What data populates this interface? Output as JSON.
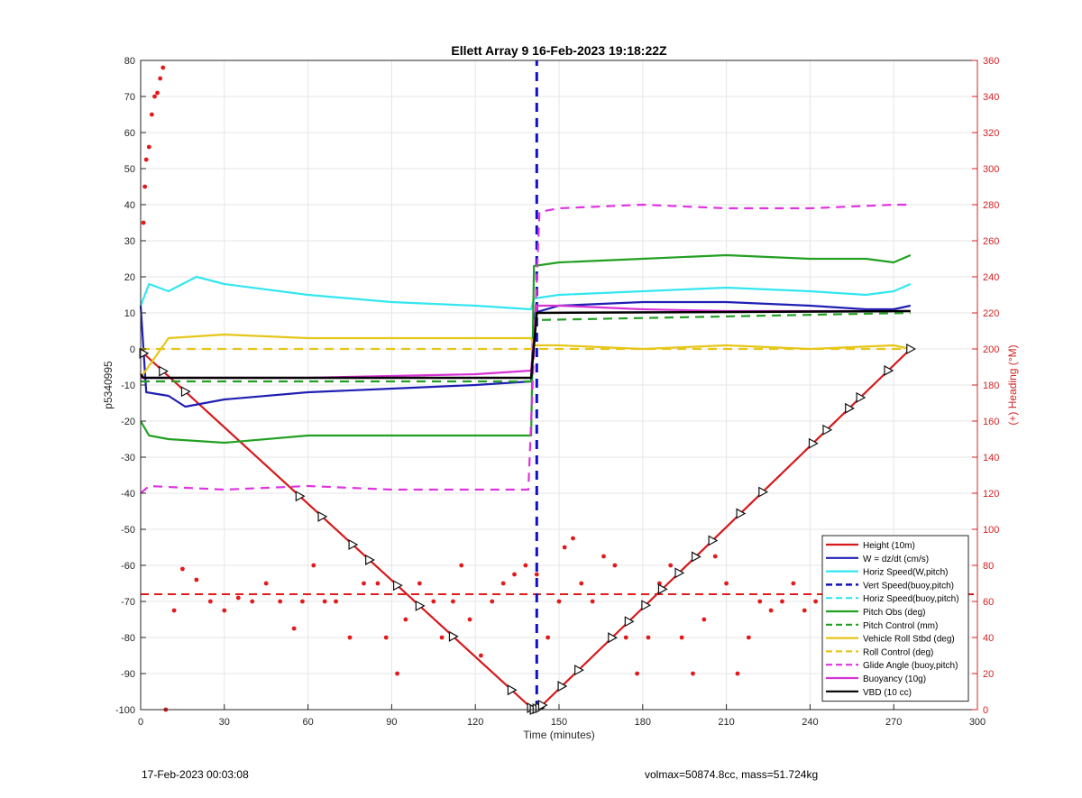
{
  "footer": {
    "left": "17-Feb-2023 00:03:08",
    "right": "volmax=50874.8cc, mass=51.724kg"
  },
  "chart_data": {
    "type": "line",
    "title": "Ellett Array 9 16-Feb-2023 19:18:22Z",
    "xlabel": "Time (minutes)",
    "ylabel": "p5340995",
    "y2label": "(+) Heading (°M)",
    "xlim": [
      0,
      300
    ],
    "ylim": [
      -100,
      80
    ],
    "y2lim": [
      0,
      360
    ],
    "xticks": [
      0,
      30,
      60,
      90,
      120,
      150,
      180,
      210,
      240,
      270,
      300
    ],
    "yticks": [
      -100,
      -90,
      -80,
      -70,
      -60,
      -50,
      -40,
      -30,
      -20,
      -10,
      0,
      10,
      20,
      30,
      40,
      50,
      60,
      70,
      80
    ],
    "y2ticks": [
      0,
      20,
      40,
      60,
      80,
      100,
      120,
      140,
      160,
      180,
      200,
      220,
      240,
      260,
      280,
      300,
      320,
      340,
      360
    ],
    "grid": true,
    "legend_position": "bottom-right",
    "colors": {
      "height": "#d7191c",
      "w": "#1f1fb4",
      "horiz": "#33e6f0",
      "vert": "#1010c8",
      "pitch": "#22a022",
      "roll": "#e6c619",
      "glide": "#e033e0",
      "buoy": "#d633d6",
      "vbd": "#000000",
      "heading": "#e31a1c",
      "axis2": "#d42020"
    },
    "series": [
      {
        "name": "Height (10m)",
        "key": "height",
        "style": "solid",
        "x": [
          0,
          140,
          141,
          143,
          276
        ],
        "y": [
          -0.5,
          -99.5,
          -100,
          -99.5,
          0
        ]
      },
      {
        "name": "W = dz/dt (cm/s)",
        "key": "w",
        "style": "solid",
        "x": [
          0,
          2,
          10,
          16,
          30,
          60,
          90,
          120,
          140,
          141,
          150,
          180,
          210,
          240,
          260,
          270,
          276
        ],
        "y": [
          12,
          -12,
          -13,
          -16,
          -14,
          -12,
          -11,
          -10,
          -9,
          10,
          12,
          13,
          13,
          12,
          11,
          11,
          12
        ]
      },
      {
        "name": "Horiz Speed(W,pitch)",
        "key": "horiz",
        "style": "solid",
        "x": [
          0,
          3,
          10,
          20,
          30,
          60,
          90,
          120,
          140,
          141,
          150,
          180,
          210,
          240,
          260,
          270,
          276
        ],
        "y": [
          12,
          18,
          16,
          20,
          18,
          15,
          13,
          12,
          11,
          14,
          15,
          16,
          17,
          16,
          15,
          16,
          18
        ]
      },
      {
        "name": "Vert Speed(buoy,pitch)",
        "key": "vert",
        "style": "dashed",
        "x": [
          142,
          142
        ],
        "y": [
          -100,
          80
        ]
      },
      {
        "name": "Horiz Speed(buoy,pitch)",
        "key": "horiz",
        "style": "dashed",
        "x": [],
        "y": []
      },
      {
        "name": "Pitch Obs (deg)",
        "key": "pitch",
        "style": "solid",
        "x": [
          0,
          3,
          10,
          30,
          60,
          90,
          120,
          140,
          141,
          150,
          180,
          210,
          240,
          260,
          270,
          276
        ],
        "y": [
          -20,
          -24,
          -25,
          -26,
          -24,
          -24,
          -24,
          -24,
          23,
          24,
          25,
          26,
          25,
          25,
          24,
          26
        ]
      },
      {
        "name": "Pitch Control (mm)",
        "key": "pitch",
        "style": "dashed",
        "x": [
          0,
          140,
          141,
          276
        ],
        "y": [
          -9,
          -9,
          8,
          10
        ]
      },
      {
        "name": "Vehicle Roll Stbd (deg)",
        "key": "roll",
        "style": "solid",
        "x": [
          0,
          10,
          30,
          60,
          90,
          120,
          140,
          141,
          150,
          180,
          210,
          240,
          270,
          276
        ],
        "y": [
          -8,
          3,
          4,
          3,
          3,
          3,
          3,
          1,
          1,
          0,
          1,
          0,
          1,
          0
        ]
      },
      {
        "name": "Roll Control (deg)",
        "key": "roll",
        "style": "dashed",
        "x": [
          0,
          140,
          141,
          276
        ],
        "y": [
          0,
          0,
          0,
          0
        ]
      },
      {
        "name": "Glide Angle (buoy,pitch)",
        "key": "glide",
        "style": "dashed",
        "x": [
          0,
          3,
          30,
          60,
          90,
          120,
          139,
          143,
          150,
          180,
          210,
          240,
          270,
          276
        ],
        "y": [
          -40,
          -38,
          -39,
          -38,
          -39,
          -39,
          -39,
          38,
          39,
          40,
          39,
          39,
          40,
          40
        ]
      },
      {
        "name": "Buoyancy (10g)",
        "key": "buoy",
        "style": "solid",
        "x": [
          0,
          1,
          30,
          60,
          90,
          120,
          140,
          142,
          150,
          180,
          210,
          240,
          270,
          276
        ],
        "y": [
          -8,
          -8,
          -8,
          -8,
          -7.5,
          -7,
          -6,
          12,
          12,
          11,
          10.5,
          10.5,
          10.5,
          10.5
        ]
      },
      {
        "name": "VBD (10 cc)",
        "key": "vbd",
        "style": "solid",
        "x": [
          0,
          1,
          140,
          142,
          276
        ],
        "y": [
          -7,
          -8,
          -8,
          10,
          10.5
        ]
      }
    ],
    "heading_points_degM": [
      [
        1,
        270
      ],
      [
        1.5,
        290
      ],
      [
        2,
        305
      ],
      [
        3,
        312
      ],
      [
        4,
        330
      ],
      [
        5,
        340
      ],
      [
        6,
        342
      ],
      [
        7,
        350
      ],
      [
        8,
        356
      ],
      [
        9,
        0
      ],
      [
        12,
        55
      ],
      [
        15,
        78
      ],
      [
        20,
        72
      ],
      [
        25,
        60
      ],
      [
        30,
        55
      ],
      [
        35,
        62
      ],
      [
        40,
        60
      ],
      [
        45,
        70
      ],
      [
        50,
        60
      ],
      [
        55,
        45
      ],
      [
        58,
        60
      ],
      [
        62,
        80
      ],
      [
        66,
        60
      ],
      [
        70,
        60
      ],
      [
        75,
        40
      ],
      [
        80,
        70
      ],
      [
        85,
        70
      ],
      [
        88,
        40
      ],
      [
        92,
        20
      ],
      [
        95,
        50
      ],
      [
        100,
        70
      ],
      [
        105,
        60
      ],
      [
        108,
        40
      ],
      [
        112,
        60
      ],
      [
        115,
        80
      ],
      [
        118,
        50
      ],
      [
        122,
        30
      ],
      [
        126,
        60
      ],
      [
        130,
        70
      ],
      [
        134,
        75
      ],
      [
        138,
        80
      ],
      [
        142,
        75
      ],
      [
        146,
        40
      ],
      [
        150,
        60
      ],
      [
        152,
        90
      ],
      [
        155,
        95
      ],
      [
        158,
        70
      ],
      [
        162,
        60
      ],
      [
        166,
        85
      ],
      [
        170,
        80
      ],
      [
        174,
        40
      ],
      [
        178,
        20
      ],
      [
        182,
        40
      ],
      [
        186,
        70
      ],
      [
        190,
        80
      ],
      [
        194,
        40
      ],
      [
        198,
        20
      ],
      [
        202,
        50
      ],
      [
        206,
        85
      ],
      [
        210,
        70
      ],
      [
        214,
        20
      ],
      [
        218,
        40
      ],
      [
        222,
        60
      ],
      [
        226,
        55
      ],
      [
        230,
        60
      ],
      [
        234,
        70
      ],
      [
        238,
        55
      ],
      [
        242,
        60
      ],
      [
        246,
        65
      ],
      [
        250,
        55
      ],
      [
        256,
        40
      ],
      [
        262,
        55
      ],
      [
        268,
        70
      ],
      [
        272,
        60
      ]
    ],
    "heading_mean_degM": 64,
    "height_markers_x": [
      1,
      8,
      16,
      57,
      65,
      76,
      82,
      92,
      100,
      112,
      133,
      140,
      141,
      142,
      143,
      144,
      151,
      157,
      169,
      175,
      181,
      187,
      193,
      199,
      205,
      215,
      223,
      241,
      246,
      254,
      258,
      268,
      276
    ]
  }
}
